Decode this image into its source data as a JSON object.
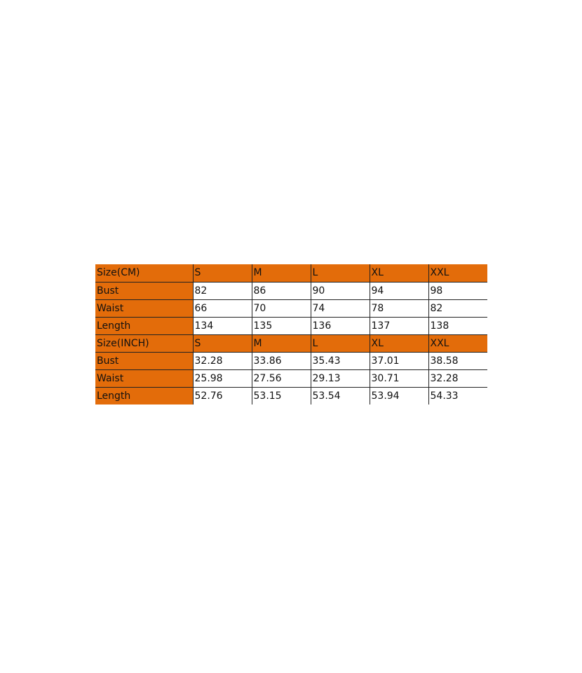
{
  "colors": {
    "header": "#E36C0A"
  },
  "table": {
    "rows": [
      {
        "type": "header",
        "cells": [
          "Size(CM)",
          "S",
          "M",
          "L",
          "XL",
          "XXL"
        ]
      },
      {
        "type": "data",
        "cells": [
          "Bust",
          "82",
          "86",
          "90",
          "94",
          "98"
        ]
      },
      {
        "type": "data",
        "cells": [
          "Waist",
          "66",
          "70",
          "74",
          "78",
          "82"
        ]
      },
      {
        "type": "data",
        "cells": [
          "Length",
          "134",
          "135",
          "136",
          "137",
          "138"
        ]
      },
      {
        "type": "header",
        "cells": [
          "Size(INCH)",
          "S",
          "M",
          "L",
          "XL",
          "XXL"
        ]
      },
      {
        "type": "data",
        "cells": [
          "Bust",
          "32.28",
          "33.86",
          "35.43",
          "37.01",
          "38.58"
        ]
      },
      {
        "type": "data",
        "cells": [
          "Waist",
          "25.98",
          "27.56",
          "29.13",
          "30.71",
          "32.28"
        ]
      },
      {
        "type": "data",
        "cells": [
          "Length",
          "52.76",
          "53.15",
          "53.54",
          "53.94",
          "54.33"
        ]
      }
    ]
  }
}
